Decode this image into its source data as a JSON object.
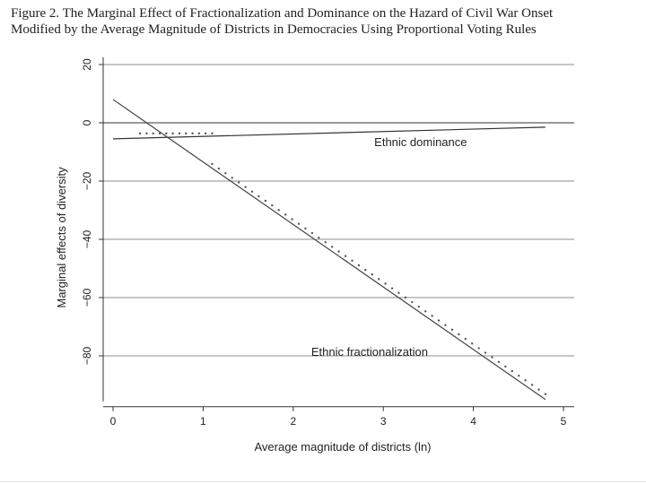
{
  "figure": {
    "title_line1": "Figure 2.    The Marginal Effect of Fractionalization and Dominance on the Hazard of Civil War Onset",
    "title_line2": "Modified by the Average Magnitude of Districts in Democracies Using Proportional Voting Rules"
  },
  "chart_data": {
    "type": "line",
    "title": "The Marginal Effect of Fractionalization and Dominance on the Hazard of Civil War Onset Modified by the Average Magnitude of Districts in Democracies Using Proportional Voting Rules",
    "xlabel": "Average magnitude of districts (ln)",
    "ylabel": "Marginal effects of diversity",
    "xlim": [
      0,
      5
    ],
    "ylim": [
      -95,
      20
    ],
    "x_ticks": [
      0,
      1,
      2,
      3,
      4,
      5
    ],
    "y_ticks": [
      20,
      0,
      -20,
      -40,
      -60,
      -80
    ],
    "y_tick_labels": [
      "20",
      "0",
      "−20",
      "−40",
      "−60",
      "−80"
    ],
    "grid": "horizontal",
    "reference_line_y": 0,
    "series": [
      {
        "name": "Ethnic dominance",
        "style": "solid",
        "color": "#333333",
        "x": [
          0,
          4.8
        ],
        "y": [
          -5.5,
          -1.5
        ]
      },
      {
        "name": "Ethnic dominance",
        "style": "dotted",
        "color": "#555555",
        "x": [
          0.3,
          1.1
        ],
        "y": [
          -3.5,
          -3.5
        ]
      },
      {
        "name": "Ethnic fractionalization",
        "style": "solid",
        "color": "#444444",
        "x": [
          0,
          4.8
        ],
        "y": [
          8,
          -95
        ]
      },
      {
        "name": "Ethnic fractionalization",
        "style": "dotted",
        "color": "#555555",
        "x": [
          1.1,
          4.8
        ],
        "y": [
          -14,
          -93
        ]
      }
    ],
    "annotations": [
      {
        "text": "Ethnic dominance",
        "x": 2.9,
        "y": -8
      },
      {
        "text": "Ethnic fractionalization",
        "x": 2.2,
        "y": -80
      }
    ]
  }
}
